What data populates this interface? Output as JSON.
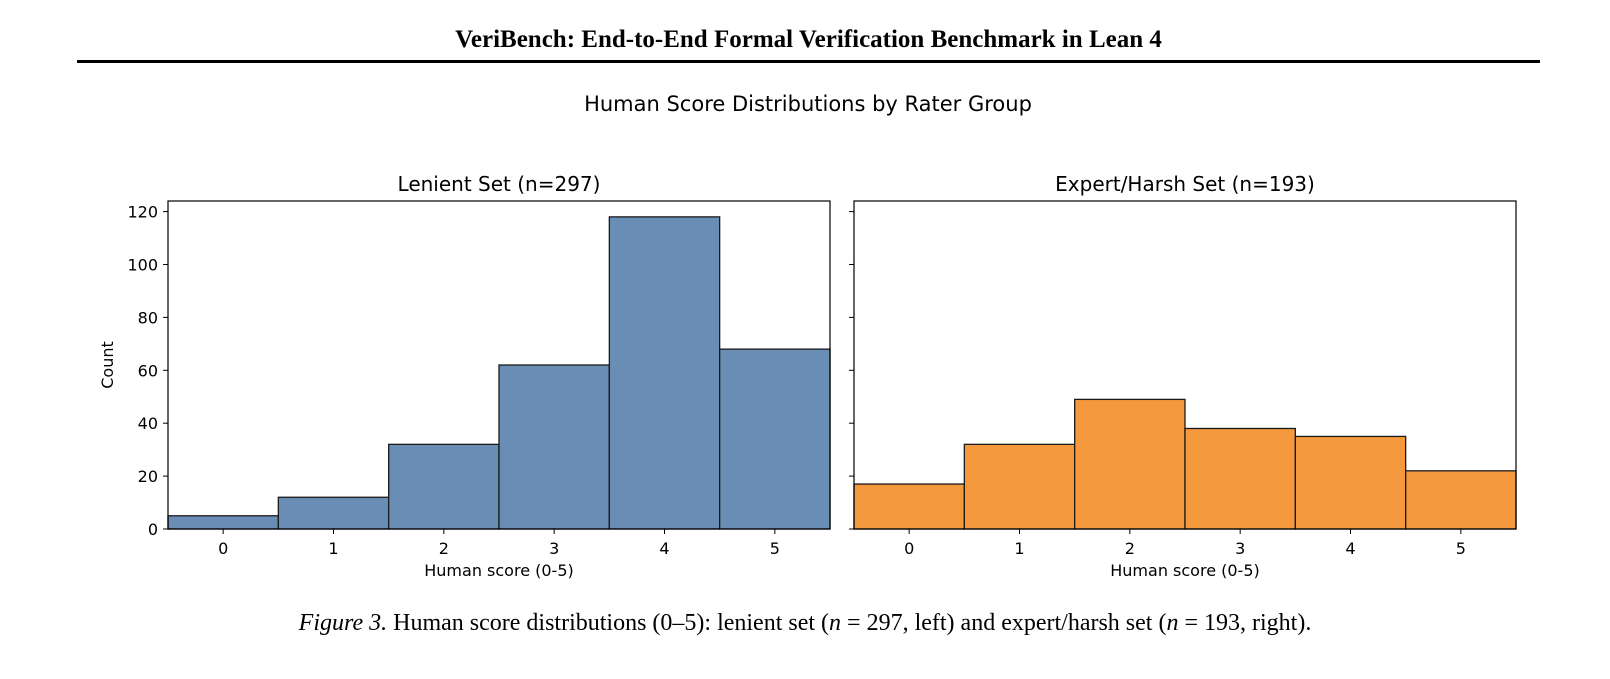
{
  "paper": {
    "header": "VeriBench: End-to-End Formal Verification Benchmark in Lean 4"
  },
  "figure": {
    "suptitle": "Human Score Distributions by Rater Group",
    "caption": {
      "label": "Figure 3.",
      "text_1": "Human score distributions (0–5): lenient set (",
      "var_1": "n",
      "eq_1": " = 297, left) and expert/harsh set (",
      "var_2": "n",
      "eq_2": " = 193, right)."
    }
  },
  "chart_data": [
    {
      "type": "bar",
      "title": "Lenient Set (n=297)",
      "xlabel": "Human score (0-5)",
      "ylabel": "Count",
      "categories": [
        "0",
        "1",
        "2",
        "3",
        "4",
        "5"
      ],
      "values": [
        5,
        12,
        32,
        62,
        118,
        68
      ],
      "yticks": [
        "0",
        "20",
        "40",
        "60",
        "80",
        "100",
        "120"
      ],
      "ylim": [
        0,
        124
      ],
      "color": "#6a8db6"
    },
    {
      "type": "bar",
      "title": "Expert/Harsh Set (n=193)",
      "xlabel": "Human score (0-5)",
      "ylabel": "",
      "categories": [
        "0",
        "1",
        "2",
        "3",
        "4",
        "5"
      ],
      "values": [
        17,
        32,
        49,
        38,
        35,
        22
      ],
      "yticks": [],
      "ylim": [
        0,
        124
      ],
      "color": "#f4993d"
    }
  ]
}
